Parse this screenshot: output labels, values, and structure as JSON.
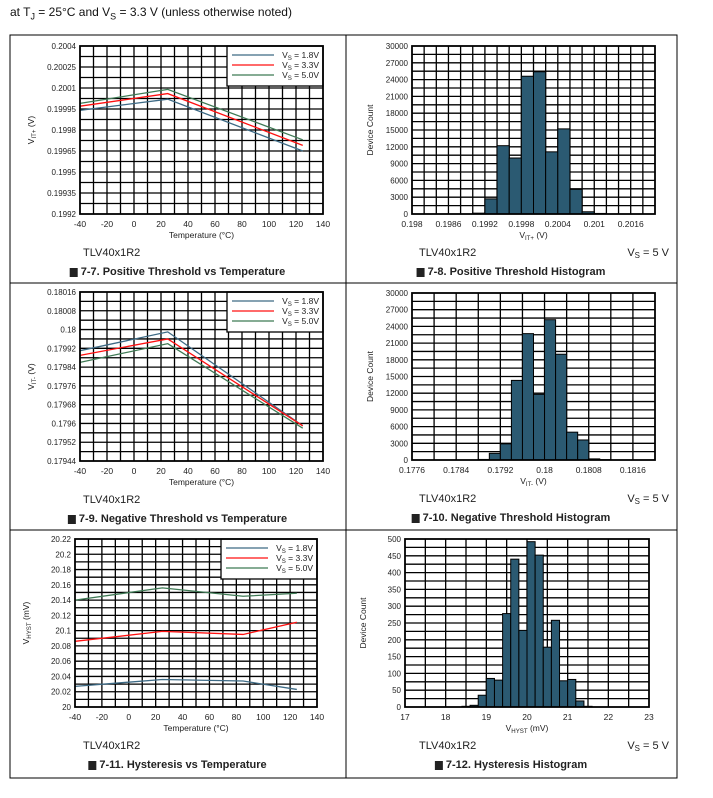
{
  "header": {
    "parts": [
      [
        "at T",
        "J",
        " = 25°C and V",
        "S",
        " = 3.3 V (unless otherwise noted)"
      ]
    ]
  },
  "colors": {
    "vs_1_8": "#3d6a85",
    "vs_3_3": "#ff1010",
    "vs_5_0": "#3f7a55",
    "bar": "#2b5a72"
  },
  "chart_data": [
    {
      "type": "line",
      "figure": "7-7",
      "title": "Positive Threshold vs Temperature",
      "device": "TLV40x1R2",
      "xlabel": "Temperature (°C)",
      "ylabel": {
        "base": "V",
        "sub": "IT+",
        "rest": " (V)"
      },
      "xlim": [
        -40,
        140
      ],
      "xticks": [
        -40,
        -20,
        0,
        20,
        40,
        60,
        80,
        100,
        120,
        140
      ],
      "xtick_labels": [
        "-40",
        "-20",
        "0",
        "20",
        "40",
        "60",
        "80",
        "100",
        "120",
        "140"
      ],
      "ylim": [
        0.1992,
        0.2004
      ],
      "yticks": [
        0.1992,
        0.19935,
        0.1995,
        0.19965,
        0.1998,
        0.19995,
        0.2001,
        0.20025,
        0.2004
      ],
      "ytick_labels": [
        "0.1992",
        "0.19935",
        "0.1995",
        "0.19965",
        "0.1998",
        "0.19995",
        "0.2001",
        "0.20025",
        "0.2004"
      ],
      "legend": "top-right",
      "series": [
        {
          "name": "1.8V",
          "label": [
            "V",
            "S",
            " = 1.8V"
          ],
          "color_key": "vs_1_8",
          "x": [
            -40,
            25,
            125
          ],
          "y": [
            0.19994,
            0.20002,
            0.19965
          ]
        },
        {
          "name": "3.3V",
          "label": [
            "V",
            "S",
            " = 3.3V"
          ],
          "color_key": "vs_3_3",
          "x": [
            -40,
            25,
            125
          ],
          "y": [
            0.19997,
            0.20006,
            0.19969
          ]
        },
        {
          "name": "5.0V",
          "label": [
            "V",
            "S",
            " = 5.0V"
          ],
          "color_key": "vs_5_0",
          "x": [
            -40,
            25,
            125
          ],
          "y": [
            0.19999,
            0.20009,
            0.19973
          ]
        }
      ]
    },
    {
      "type": "bar",
      "figure": "7-8",
      "title": "Positive Threshold Histogram",
      "device": "TLV40x1R2",
      "condition": [
        "V",
        "S",
        " = 5 V"
      ],
      "xlabel": {
        "base": "V",
        "sub": "IT+",
        "rest": " (V)"
      },
      "ylabel": "Device Count",
      "xlim": [
        0.198,
        0.202
      ],
      "xticks": [
        0.198,
        0.1986,
        0.1992,
        0.1998,
        0.2004,
        0.201,
        0.2016
      ],
      "xtick_labels": [
        "0.198",
        "0.1986",
        "0.1992",
        "0.1998",
        "0.2004",
        "0.201",
        "0.2016"
      ],
      "ylim": [
        0,
        30000
      ],
      "yticks": [
        0,
        3000,
        6000,
        9000,
        12000,
        15000,
        18000,
        21000,
        24000,
        27000,
        30000
      ],
      "ytick_labels": [
        "0",
        "3000",
        "6000",
        "9000",
        "12000",
        "15000",
        "18000",
        "21000",
        "24000",
        "27000",
        "30000"
      ],
      "bin_width": 0.0002,
      "bins": [
        0.199,
        0.1992,
        0.1994,
        0.1996,
        0.1998,
        0.2,
        0.2002,
        0.2004,
        0.2006,
        0.2008,
        0.201
      ],
      "values": [
        150,
        2700,
        12200,
        10000,
        24600,
        25400,
        11100,
        15200,
        4400,
        400,
        100
      ]
    },
    {
      "type": "line",
      "figure": "7-9",
      "title": "Negative Threshold vs Temperature",
      "device": "TLV40x1R2",
      "xlabel": "Temperature (°C)",
      "ylabel": {
        "base": "V",
        "sub": "IT-",
        "rest": " (V)"
      },
      "xlim": [
        -40,
        140
      ],
      "xticks": [
        -40,
        -20,
        0,
        20,
        40,
        60,
        80,
        100,
        120,
        140
      ],
      "xtick_labels": [
        "-40",
        "-20",
        "0",
        "20",
        "40",
        "60",
        "80",
        "100",
        "120",
        "140"
      ],
      "ylim": [
        0.17944,
        0.18016
      ],
      "yticks": [
        0.17944,
        0.17952,
        0.1796,
        0.17968,
        0.17976,
        0.17984,
        0.17992,
        0.18,
        0.18008,
        0.18016
      ],
      "ytick_labels": [
        "0.17944",
        "0.17952",
        "0.1796",
        "0.17968",
        "0.17976",
        "0.17984",
        "0.17992",
        "0.18",
        "0.18008",
        "0.18016"
      ],
      "legend": "top-right",
      "series": [
        {
          "name": "1.8V",
          "label": [
            "V",
            "S",
            " = 1.8V"
          ],
          "color_key": "vs_1_8",
          "x": [
            -40,
            25,
            125
          ],
          "y": [
            0.17991,
            0.17999,
            0.17959
          ]
        },
        {
          "name": "3.3V",
          "label": [
            "V",
            "S",
            " = 3.3V"
          ],
          "color_key": "vs_3_3",
          "x": [
            -40,
            25,
            125
          ],
          "y": [
            0.17989,
            0.17996,
            0.17959
          ]
        },
        {
          "name": "5.0V",
          "label": [
            "V",
            "S",
            " = 5.0V"
          ],
          "color_key": "vs_5_0",
          "x": [
            -40,
            25,
            125
          ],
          "y": [
            0.17986,
            0.17994,
            0.17958
          ]
        }
      ]
    },
    {
      "type": "bar",
      "figure": "7-10",
      "title": "Negative Threshold Histogram",
      "device": "TLV40x1R2",
      "condition": [
        "V",
        "S",
        " = 5 V"
      ],
      "xlabel": {
        "base": "V",
        "sub": "IT-",
        "rest": " (V)"
      },
      "ylabel": "Device Count",
      "xlim": [
        0.1776,
        0.182
      ],
      "xticks": [
        0.1776,
        0.1784,
        0.1792,
        0.18,
        0.1808,
        0.1816
      ],
      "xtick_labels": [
        "0.1776",
        "0.1784",
        "0.1792",
        "0.18",
        "0.1808",
        "0.1816"
      ],
      "ylim": [
        0,
        30000
      ],
      "yticks": [
        0,
        3000,
        6000,
        9000,
        12000,
        15000,
        18000,
        21000,
        24000,
        27000,
        30000
      ],
      "ytick_labels": [
        "0",
        "3000",
        "6000",
        "9000",
        "12000",
        "15000",
        "18000",
        "21000",
        "24000",
        "27000",
        "30000"
      ],
      "bin_width": 0.0002,
      "bins": [
        0.1788,
        0.179,
        0.1792,
        0.1794,
        0.1796,
        0.1798,
        0.18,
        0.1802,
        0.1804,
        0.1806,
        0.1808,
        0.181
      ],
      "values": [
        100,
        1200,
        2900,
        14300,
        22700,
        11800,
        25200,
        19000,
        5000,
        3600,
        200,
        50
      ]
    },
    {
      "type": "line",
      "figure": "7-11",
      "title": "Hysteresis vs Temperature",
      "device": "TLV40x1R2",
      "xlabel": "Temperature (°C)",
      "ylabel": {
        "base": "V",
        "sub": "HYST",
        "rest": " (mV)"
      },
      "xlim": [
        -40,
        140
      ],
      "xticks": [
        -40,
        -20,
        0,
        20,
        40,
        60,
        80,
        100,
        120,
        140
      ],
      "xtick_labels": [
        "-40",
        "-20",
        "0",
        "20",
        "40",
        "60",
        "80",
        "100",
        "120",
        "140"
      ],
      "ylim": [
        20,
        20.22
      ],
      "yticks": [
        20,
        20.02,
        20.04,
        20.06,
        20.08,
        20.1,
        20.12,
        20.14,
        20.16,
        20.18,
        20.2,
        20.22
      ],
      "ytick_labels": [
        "20",
        "20.02",
        "20.04",
        "20.06",
        "20.08",
        "20.1",
        "20.12",
        "20.14",
        "20.16",
        "20.18",
        "20.2",
        "20.22"
      ],
      "legend": "top-right",
      "series": [
        {
          "name": "1.8V",
          "label": [
            "V",
            "S",
            " = 1.8V"
          ],
          "color_key": "vs_1_8",
          "x": [
            -40,
            25,
            85,
            125
          ],
          "y": [
            20.027,
            20.036,
            20.034,
            20.023
          ]
        },
        {
          "name": "3.3V",
          "label": [
            "V",
            "S",
            " = 3.3V"
          ],
          "color_key": "vs_3_3",
          "x": [
            -40,
            25,
            85,
            125
          ],
          "y": [
            20.086,
            20.099,
            20.095,
            20.111
          ]
        },
        {
          "name": "5.0V",
          "label": [
            "V",
            "S",
            " = 5.0V"
          ],
          "color_key": "vs_5_0",
          "x": [
            -40,
            25,
            85,
            125
          ],
          "y": [
            20.14,
            20.156,
            20.145,
            20.149
          ]
        }
      ]
    },
    {
      "type": "bar",
      "figure": "7-12",
      "title": "Hysteresis Histogram",
      "device": "TLV40x1R2",
      "condition": [
        "V",
        "S",
        " = 5 V"
      ],
      "xlabel": {
        "base": "V",
        "sub": "HYST",
        "rest": " (mV)"
      },
      "ylabel": "Device Count",
      "xlim": [
        17,
        23
      ],
      "xticks": [
        17,
        18,
        19,
        20,
        21,
        22,
        23
      ],
      "xtick_labels": [
        "17",
        "18",
        "19",
        "20",
        "21",
        "22",
        "23"
      ],
      "ylim": [
        0,
        500
      ],
      "yticks": [
        0,
        50,
        100,
        150,
        200,
        250,
        300,
        350,
        400,
        450,
        500
      ],
      "ytick_labels": [
        "0",
        "50",
        "100",
        "150",
        "200",
        "250",
        "300",
        "350",
        "400",
        "450",
        "500"
      ],
      "bin_width": 0.2,
      "bins": [
        18.4,
        18.6,
        18.8,
        19.0,
        19.2,
        19.4,
        19.6,
        19.8,
        20.0,
        20.2,
        20.4,
        20.6,
        20.8,
        21.0,
        21.2,
        21.4
      ],
      "values": [
        2,
        5,
        35,
        85,
        80,
        278,
        440,
        228,
        492,
        452,
        178,
        258,
        78,
        82,
        18,
        2
      ]
    }
  ]
}
